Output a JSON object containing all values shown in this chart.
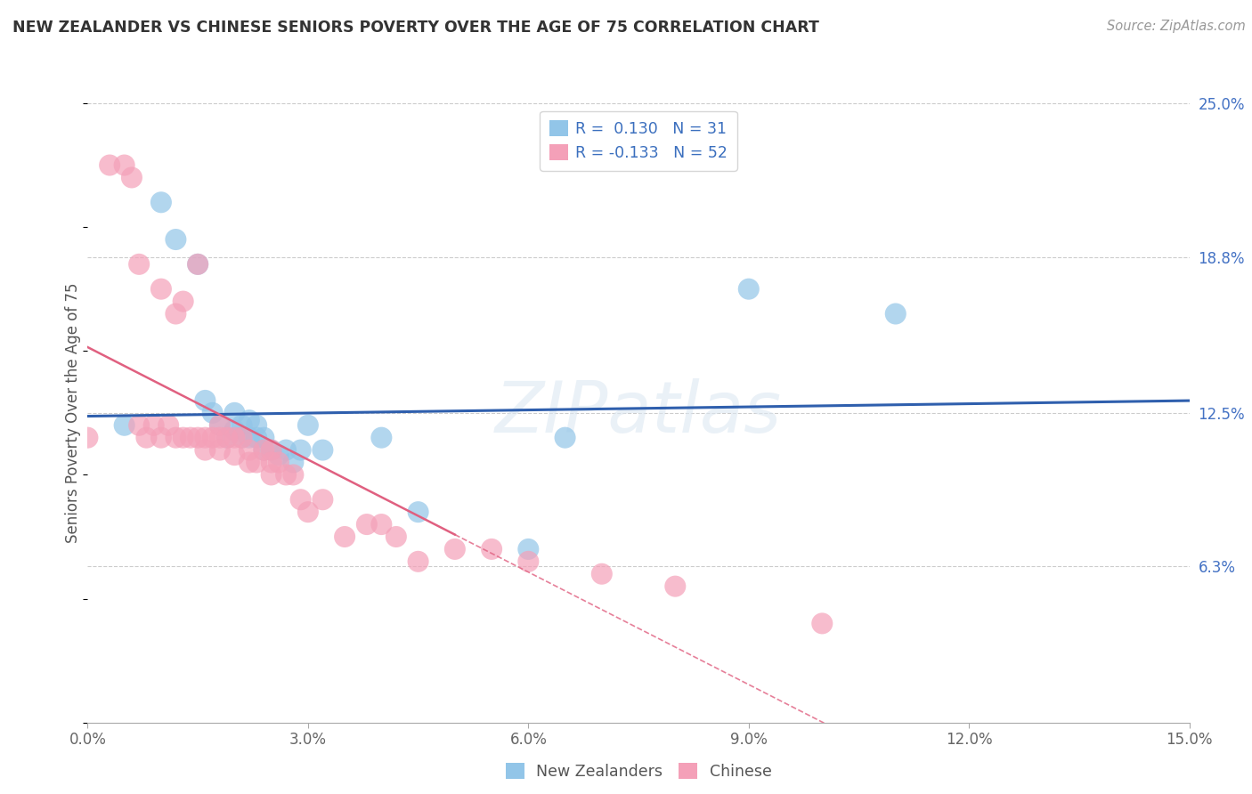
{
  "title": "NEW ZEALANDER VS CHINESE SENIORS POVERTY OVER THE AGE OF 75 CORRELATION CHART",
  "source": "Source: ZipAtlas.com",
  "ylabel": "Seniors Poverty Over the Age of 75",
  "xlabel_labels": [
    "0.0%",
    "3.0%",
    "6.0%",
    "9.0%",
    "12.0%",
    "15.0%"
  ],
  "xlim": [
    0.0,
    0.15
  ],
  "ylim": [
    0.0,
    0.25
  ],
  "yticks_right": [
    0.063,
    0.125,
    0.188,
    0.25
  ],
  "ytick_labels_right": [
    "6.3%",
    "12.5%",
    "18.8%",
    "25.0%"
  ],
  "nz_R": 0.13,
  "nz_N": 31,
  "ch_R": -0.133,
  "ch_N": 52,
  "nz_color": "#92C5E8",
  "ch_color": "#F4A0B8",
  "nz_line_color": "#2F5FAD",
  "ch_line_color": "#E06080",
  "nz_x": [
    0.005,
    0.01,
    0.012,
    0.015,
    0.016,
    0.017,
    0.018,
    0.019,
    0.02,
    0.02,
    0.021,
    0.021,
    0.022,
    0.022,
    0.023,
    0.023,
    0.024,
    0.024,
    0.025,
    0.026,
    0.027,
    0.028,
    0.029,
    0.03,
    0.032,
    0.04,
    0.045,
    0.06,
    0.065,
    0.09,
    0.11
  ],
  "nz_y": [
    0.12,
    0.21,
    0.195,
    0.185,
    0.13,
    0.125,
    0.12,
    0.115,
    0.125,
    0.118,
    0.12,
    0.115,
    0.122,
    0.115,
    0.12,
    0.115,
    0.115,
    0.11,
    0.11,
    0.108,
    0.11,
    0.105,
    0.11,
    0.12,
    0.11,
    0.115,
    0.085,
    0.07,
    0.115,
    0.175,
    0.165
  ],
  "ch_x": [
    0.0,
    0.003,
    0.005,
    0.006,
    0.007,
    0.007,
    0.008,
    0.009,
    0.01,
    0.01,
    0.011,
    0.012,
    0.012,
    0.013,
    0.013,
    0.014,
    0.015,
    0.015,
    0.016,
    0.016,
    0.017,
    0.018,
    0.018,
    0.018,
    0.019,
    0.02,
    0.02,
    0.021,
    0.022,
    0.022,
    0.023,
    0.024,
    0.025,
    0.025,
    0.025,
    0.026,
    0.027,
    0.028,
    0.029,
    0.03,
    0.032,
    0.035,
    0.038,
    0.04,
    0.042,
    0.045,
    0.05,
    0.055,
    0.06,
    0.07,
    0.08,
    0.1
  ],
  "ch_y": [
    0.115,
    0.225,
    0.225,
    0.22,
    0.185,
    0.12,
    0.115,
    0.12,
    0.175,
    0.115,
    0.12,
    0.165,
    0.115,
    0.17,
    0.115,
    0.115,
    0.185,
    0.115,
    0.115,
    0.11,
    0.115,
    0.115,
    0.12,
    0.11,
    0.115,
    0.115,
    0.108,
    0.115,
    0.11,
    0.105,
    0.105,
    0.11,
    0.11,
    0.105,
    0.1,
    0.105,
    0.1,
    0.1,
    0.09,
    0.085,
    0.09,
    0.075,
    0.08,
    0.08,
    0.075,
    0.065,
    0.07,
    0.07,
    0.065,
    0.06,
    0.055,
    0.04
  ]
}
